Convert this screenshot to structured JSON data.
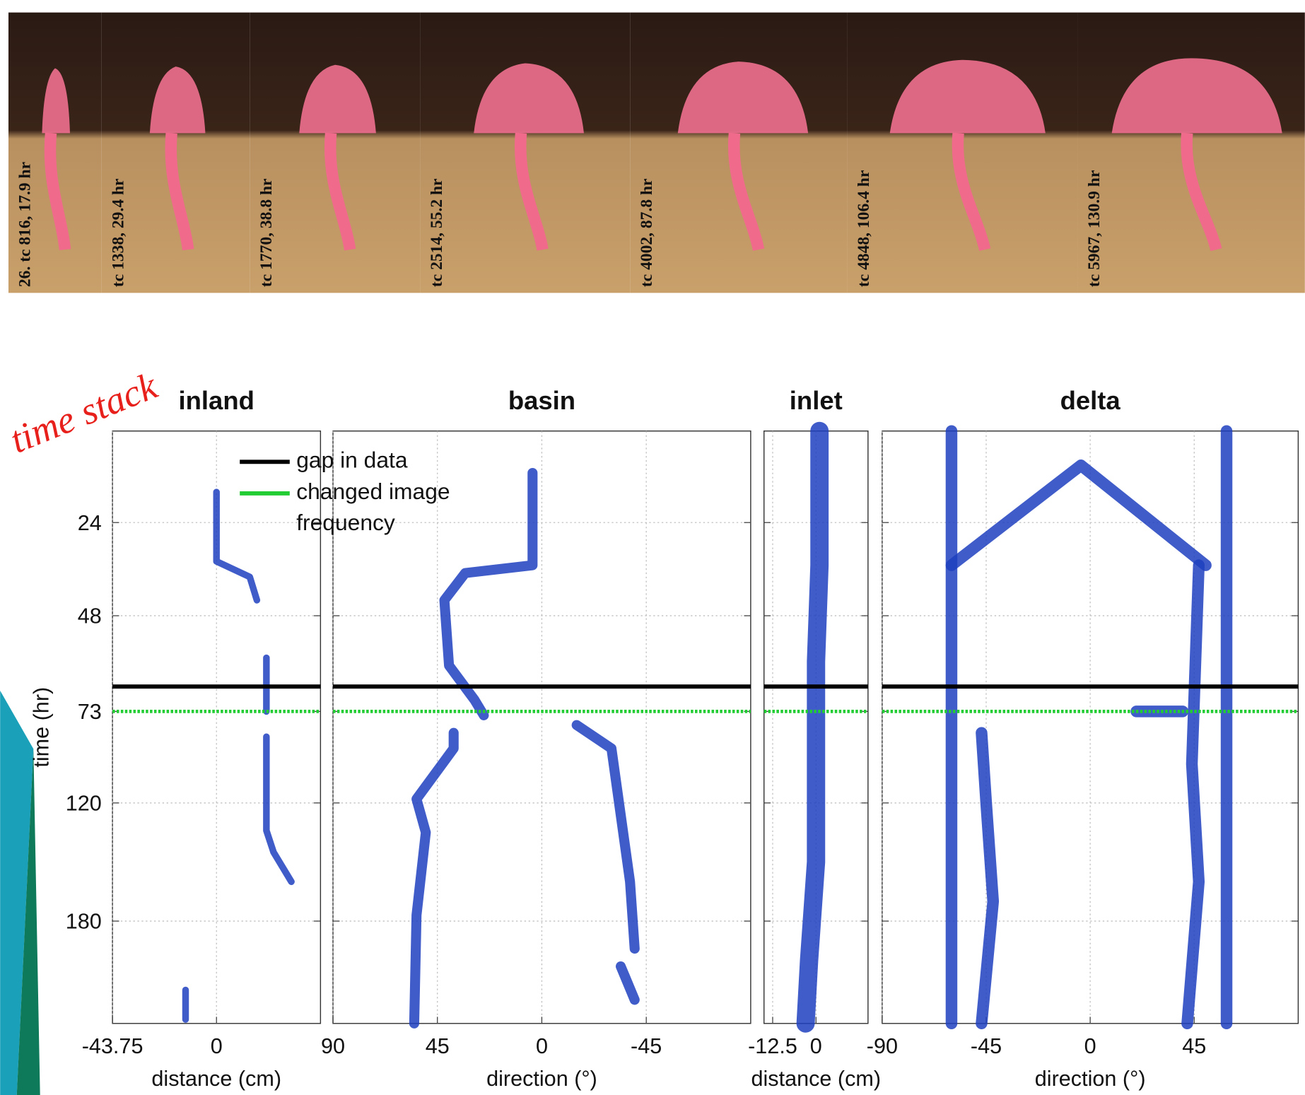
{
  "photos": [
    {
      "label": "26. tc 816, 17.9 hr"
    },
    {
      "label": "tc 1338, 29.4 hr"
    },
    {
      "label": "tc 1770, 38.8 hr"
    },
    {
      "label": "tc 2514, 55.2 hr"
    },
    {
      "label": "tc 4002, 87.8 hr"
    },
    {
      "label": "tc 4848, 106.4 hr"
    },
    {
      "label": "tc 5967, 130.9 hr"
    }
  ],
  "annotation": "time stack",
  "chart_data": {
    "type": "timestack",
    "ylabel": "time (hr)",
    "ylim": [
      0,
      232
    ],
    "yticks": [
      24,
      48,
      73,
      120,
      180
    ],
    "grid": true,
    "color": "#1f3fbf",
    "lines": [
      {
        "name": "gap in data",
        "color": "#000000",
        "value": 66.5
      },
      {
        "name": "changed image frequency",
        "color": "#22cc33",
        "value": 73
      }
    ],
    "panels": [
      {
        "title": "inland",
        "xlabel": "distance (cm)",
        "xlim": [
          -43.75,
          43.75
        ],
        "xticks": [
          -43.75,
          0
        ],
        "traces": [
          {
            "x": [
              0,
              0,
              14,
              17
            ],
            "y": [
              16,
              34,
              38,
              44
            ]
          },
          {
            "x": [
              21,
              21
            ],
            "y": [
              59,
              73
            ]
          },
          {
            "x": [
              21,
              21,
              24,
              31.5
            ],
            "y": [
              86,
              134,
              145,
              160
            ]
          },
          {
            "x": [
              -13,
              -13
            ],
            "y": [
              215,
              230
            ]
          }
        ]
      },
      {
        "title": "basin",
        "xlabel": "direction (°)",
        "xlim": [
          90,
          -90
        ],
        "xticks": [
          90,
          45,
          0,
          -45
        ],
        "traces": [
          {
            "x": [
              4,
              4,
              33,
              42,
              40,
              29,
              25
            ],
            "y": [
              11,
              35,
              37,
              44,
              61,
              70,
              75
            ]
          },
          {
            "x": [
              38,
              38,
              54,
              50,
              54,
              55
            ],
            "y": [
              84,
              92,
              118,
              135,
              177,
              232
            ]
          },
          {
            "x": [
              -15,
              -30,
              -38,
              -40
            ],
            "y": [
              80,
              92,
              160,
              194
            ]
          },
          {
            "x": [
              -34,
              -40
            ],
            "y": [
              203,
              220
            ]
          }
        ]
      },
      {
        "title": "inlet",
        "xlabel": "distance (cm)",
        "xlim": [
          -15,
          15
        ],
        "xticks": [
          -12.5,
          0
        ],
        "traces": [
          {
            "x": [
              1,
              1,
              0,
              0,
              0,
              -2,
              -3
            ],
            "y": [
              0,
              35,
              60,
              100,
              150,
              200,
              232
            ]
          }
        ]
      },
      {
        "title": "delta",
        "xlabel": "direction (°)",
        "xlim": [
          -90,
          90
        ],
        "xticks": [
          -90,
          -45,
          0,
          45
        ],
        "traces": [
          {
            "x": [
              -60,
              -60
            ],
            "y": [
              0,
              232
            ]
          },
          {
            "x": [
              59,
              59
            ],
            "y": [
              0,
              232
            ]
          },
          {
            "x": [
              -60,
              -4,
              50
            ],
            "y": [
              35,
              9,
              35
            ]
          },
          {
            "x": [
              -47,
              -45,
              -42,
              -47
            ],
            "y": [
              84,
              120,
              170,
              232
            ]
          },
          {
            "x": [
              47,
              44,
              47,
              42
            ],
            "y": [
              35,
              100,
              160,
              232
            ]
          },
          {
            "x": [
              20,
              40
            ],
            "y": [
              73,
              73
            ]
          }
        ]
      }
    ]
  }
}
